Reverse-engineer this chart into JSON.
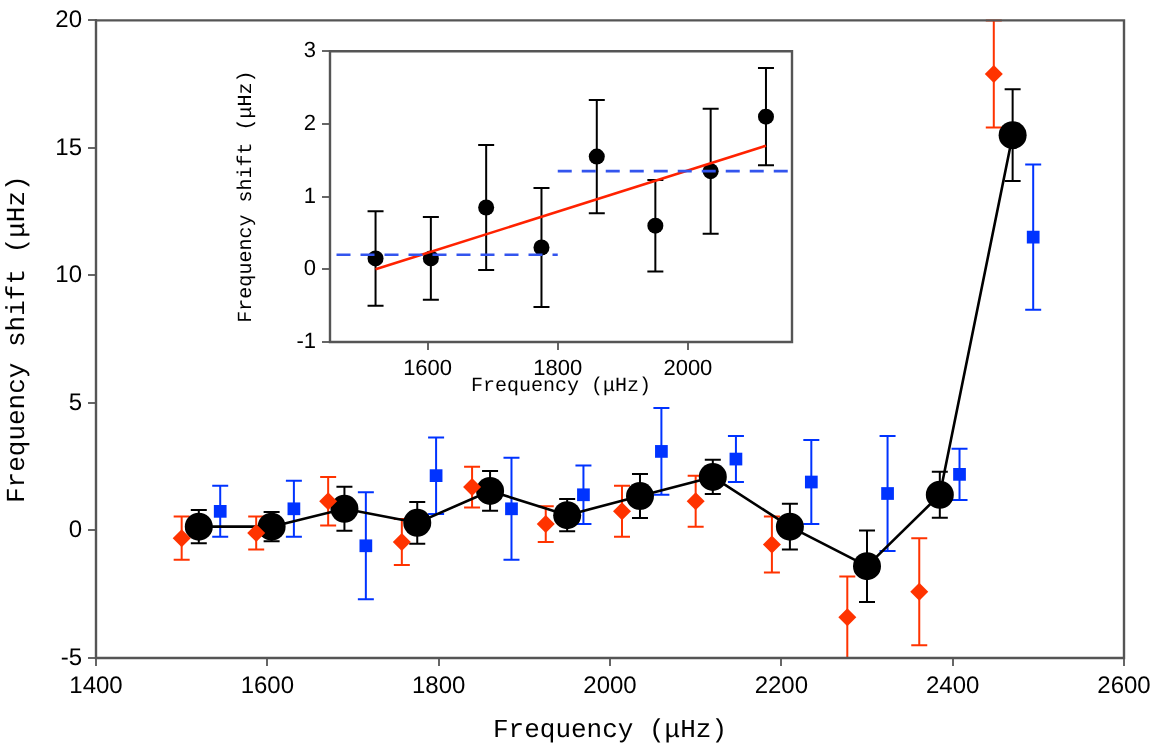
{
  "chart_data": [
    {
      "type": "scatter",
      "xlabel": "Frequency (μHz)",
      "ylabel": "Frequency shift (μHz)",
      "xlim": [
        1400,
        2600
      ],
      "ylim": [
        -5,
        20
      ],
      "xticks": [
        1400,
        1600,
        1800,
        2000,
        2200,
        2400,
        2600
      ],
      "yticks": [
        -5,
        0,
        5,
        10,
        15,
        20
      ],
      "grid": false,
      "legend": false,
      "series": [
        {
          "type": "scatter",
          "marker": "diamond",
          "color": "#ff3300",
          "x": [
            1500,
            1587,
            1671,
            1757,
            1839,
            1925,
            2014,
            2100,
            2189,
            2277,
            2361,
            2448
          ],
          "values": [
            -0.3,
            -0.1,
            1.15,
            -0.45,
            1.7,
            0.25,
            0.75,
            1.15,
            -0.55,
            -3.4,
            -2.4,
            17.9
          ],
          "errors": [
            0.85,
            0.65,
            0.95,
            0.9,
            0.8,
            0.7,
            1,
            1,
            1.1,
            1.6,
            2.1,
            2.1
          ]
        },
        {
          "type": "scatter",
          "marker": "square",
          "color": "#0033ff",
          "x": [
            1545,
            1631,
            1715,
            1797,
            1885,
            1969,
            2060,
            2147,
            2235,
            2324,
            2408,
            2494
          ],
          "values": [
            0.75,
            0.85,
            -0.6,
            2.15,
            0.85,
            1.4,
            3.1,
            2.8,
            1.9,
            1.45,
            2.2,
            11.5
          ],
          "errors": [
            1,
            1.1,
            2.1,
            1.5,
            2,
            1.15,
            1.7,
            0.9,
            1.65,
            2.25,
            1,
            2.85
          ]
        },
        {
          "type": "line",
          "marker": "circle",
          "line_style": "solid",
          "color": "#000000",
          "x": [
            1520,
            1605,
            1690,
            1775,
            1860,
            1950,
            2035,
            2120,
            2210,
            2300,
            2385,
            2470
          ],
          "values": [
            0.15,
            0.15,
            0.85,
            0.3,
            1.55,
            0.6,
            1.35,
            2.1,
            0.15,
            -1.4,
            1.4,
            15.5
          ],
          "errors": [
            0.65,
            0.57,
            0.86,
            0.82,
            0.78,
            0.63,
            0.86,
            0.67,
            0.9,
            1.4,
            0.9,
            1.8
          ]
        }
      ]
    },
    {
      "type": "scatter",
      "xlabel": "Frequency (μHz)",
      "ylabel": "Frequency shift (μHz)",
      "xlim": [
        1450,
        2160
      ],
      "ylim": [
        -1,
        3
      ],
      "xticks": [
        1600,
        1800,
        2000
      ],
      "yticks": [
        -1,
        0,
        1,
        2,
        3
      ],
      "grid": false,
      "legend": false,
      "series": [
        {
          "type": "line",
          "marker": "none",
          "line_style": "dashed",
          "color": "#3355ee",
          "x": [
            1460,
            1800
          ],
          "values": [
            0.2,
            0.2
          ]
        },
        {
          "type": "line",
          "marker": "none",
          "line_style": "dashed",
          "color": "#3355ee",
          "x": [
            1800,
            2155
          ],
          "values": [
            1.35,
            1.35
          ]
        },
        {
          "type": "line",
          "marker": "none",
          "line_style": "solid",
          "color": "#ff2200",
          "x": [
            1520,
            2120
          ],
          "values": [
            0,
            1.7
          ]
        },
        {
          "type": "scatter",
          "marker": "circle",
          "color": "#000000",
          "x": [
            1520,
            1605,
            1690,
            1775,
            1860,
            1950,
            2035,
            2120
          ],
          "values": [
            0.15,
            0.15,
            0.85,
            0.3,
            1.55,
            0.6,
            1.35,
            2.1
          ],
          "errors": [
            0.65,
            0.57,
            0.86,
            0.82,
            0.78,
            0.63,
            0.86,
            0.67
          ]
        }
      ]
    }
  ]
}
